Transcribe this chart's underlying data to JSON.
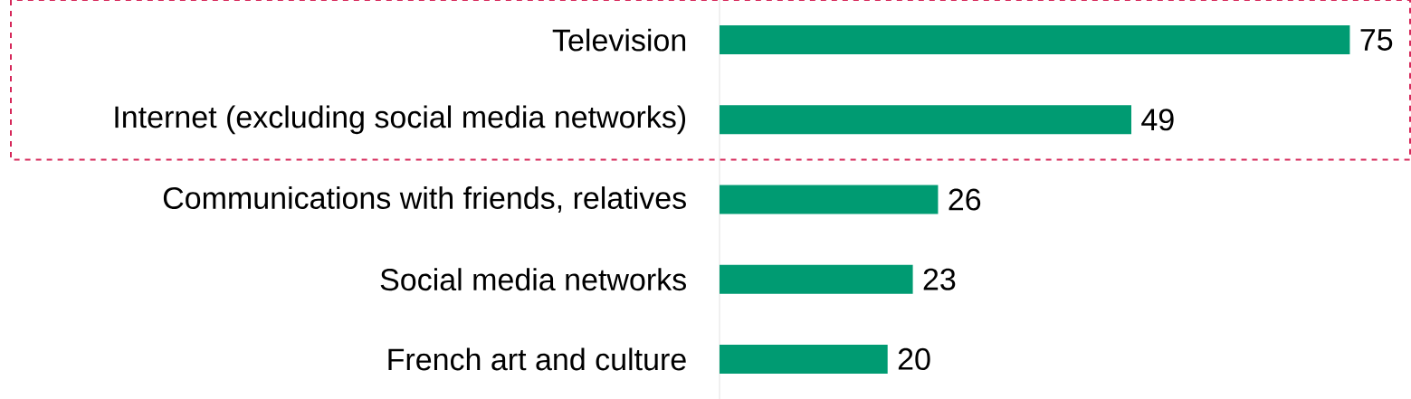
{
  "chart_data": {
    "type": "bar",
    "orientation": "horizontal",
    "categories": [
      "Television",
      "Internet (excluding social media networks)",
      "Communications with friends, relatives",
      "Social media networks",
      "French art and culture"
    ],
    "values": [
      75,
      49,
      26,
      23,
      20
    ],
    "color": "#009b72",
    "data_labels": true
  }
}
